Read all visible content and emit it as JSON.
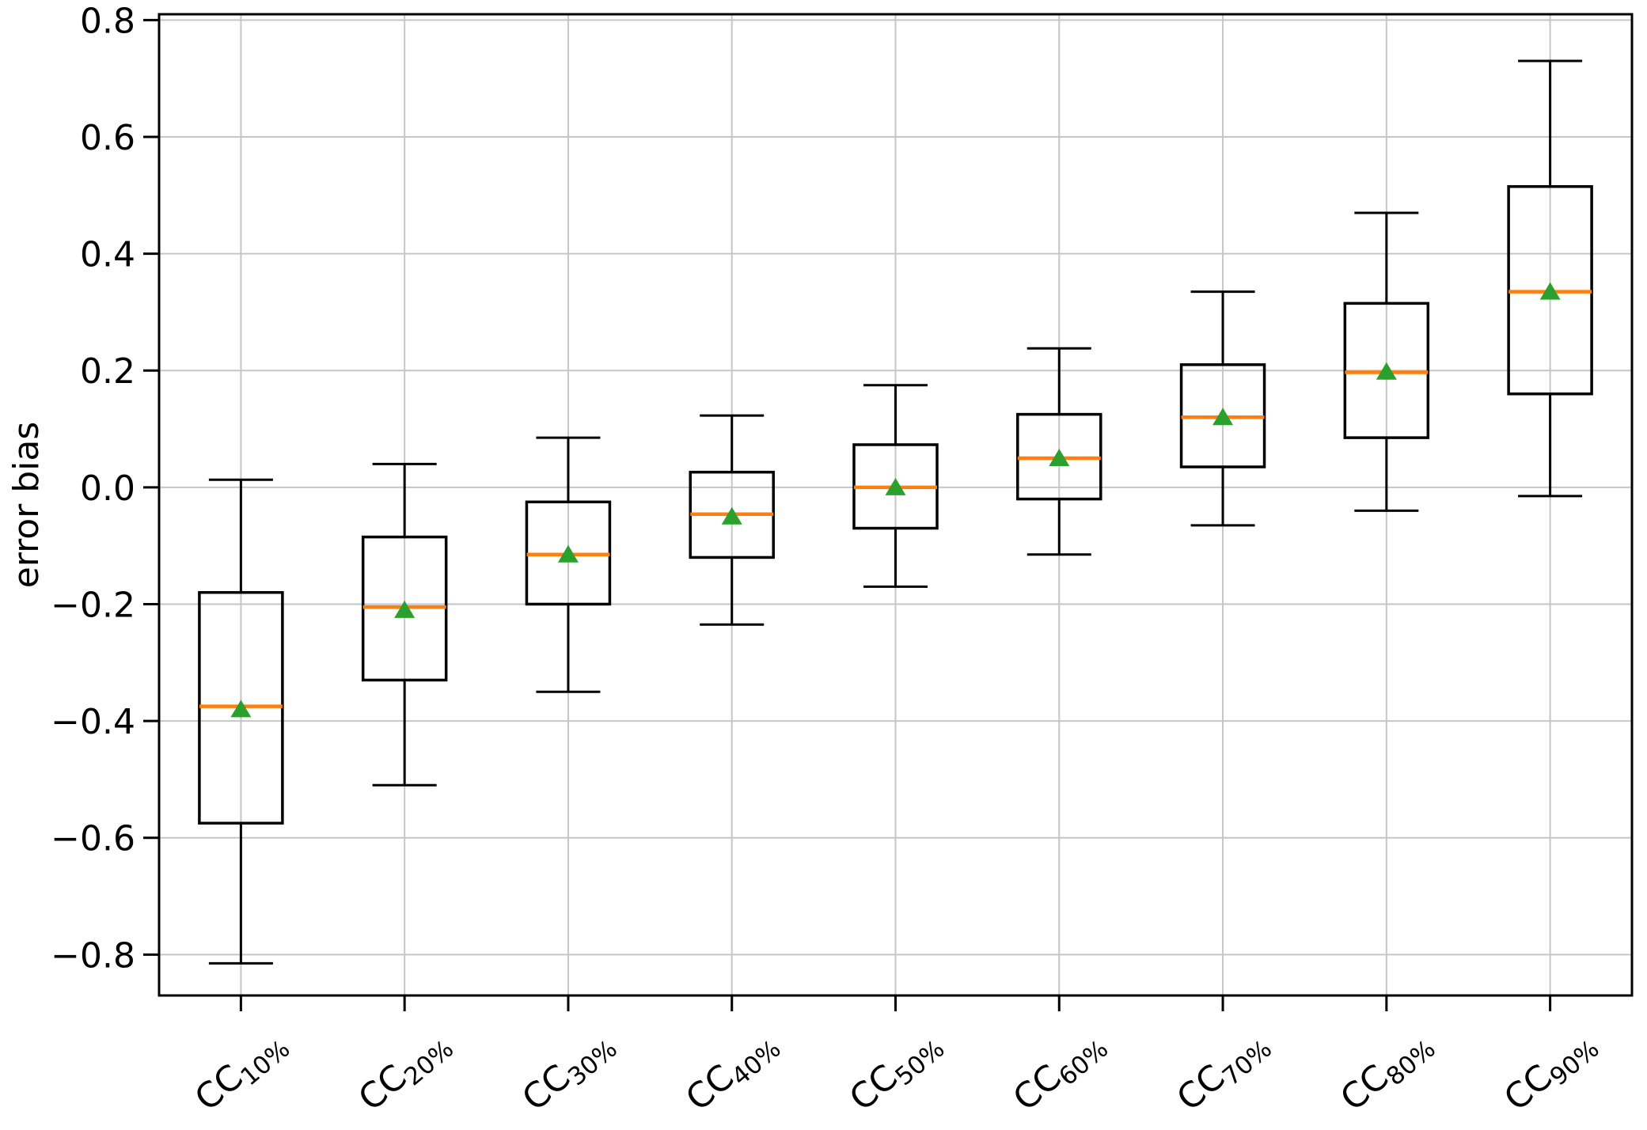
{
  "chart_data": {
    "type": "box",
    "title": "",
    "xlabel": "",
    "ylabel": "error bias",
    "ylim": [
      -0.87,
      0.81
    ],
    "yticks": [
      0.8,
      0.6,
      0.4,
      0.2,
      0.0,
      -0.2,
      -0.4,
      -0.6,
      -0.8
    ],
    "grid": true,
    "legend": "none",
    "colors": {
      "median": "#ff7f0e",
      "mean_marker": "#2ca02c",
      "box_line": "#000000",
      "grid_line": "#c6c6c6",
      "background": "#ffffff"
    },
    "mean_marker_shape": "triangle-up",
    "categories": [
      "CC10%",
      "CC20%",
      "CC30%",
      "CC40%",
      "CC50%",
      "CC60%",
      "CC70%",
      "CC80%",
      "CC90%"
    ],
    "category_labels": [
      {
        "base": "CC",
        "sub": "10%"
      },
      {
        "base": "CC",
        "sub": "20%"
      },
      {
        "base": "CC",
        "sub": "30%"
      },
      {
        "base": "CC",
        "sub": "40%"
      },
      {
        "base": "CC",
        "sub": "50%"
      },
      {
        "base": "CC",
        "sub": "60%"
      },
      {
        "base": "CC",
        "sub": "70%"
      },
      {
        "base": "CC",
        "sub": "80%"
      },
      {
        "base": "CC",
        "sub": "90%"
      }
    ],
    "boxes": [
      {
        "label": "CC10%",
        "whislo": -0.815,
        "q1": -0.575,
        "med": -0.375,
        "mean": -0.38,
        "q3": -0.18,
        "whishi": 0.013
      },
      {
        "label": "CC20%",
        "whislo": -0.51,
        "q1": -0.33,
        "med": -0.205,
        "mean": -0.21,
        "q3": -0.085,
        "whishi": 0.04
      },
      {
        "label": "CC30%",
        "whislo": -0.35,
        "q1": -0.2,
        "med": -0.115,
        "mean": -0.115,
        "q3": -0.025,
        "whishi": 0.085
      },
      {
        "label": "CC40%",
        "whislo": -0.235,
        "q1": -0.12,
        "med": -0.046,
        "mean": -0.05,
        "q3": 0.026,
        "whishi": 0.123
      },
      {
        "label": "CC50%",
        "whislo": -0.17,
        "q1": -0.07,
        "med": 0.0,
        "mean": 0.0,
        "q3": 0.073,
        "whishi": 0.175
      },
      {
        "label": "CC60%",
        "whislo": -0.115,
        "q1": -0.02,
        "med": 0.05,
        "mean": 0.05,
        "q3": 0.125,
        "whishi": 0.238
      },
      {
        "label": "CC70%",
        "whislo": -0.065,
        "q1": 0.035,
        "med": 0.12,
        "mean": 0.12,
        "q3": 0.21,
        "whishi": 0.335
      },
      {
        "label": "CC80%",
        "whislo": -0.04,
        "q1": 0.085,
        "med": 0.197,
        "mean": 0.198,
        "q3": 0.315,
        "whishi": 0.47
      },
      {
        "label": "CC90%",
        "whislo": -0.015,
        "q1": 0.16,
        "med": 0.335,
        "mean": 0.335,
        "q3": 0.515,
        "whishi": 0.73
      }
    ]
  }
}
